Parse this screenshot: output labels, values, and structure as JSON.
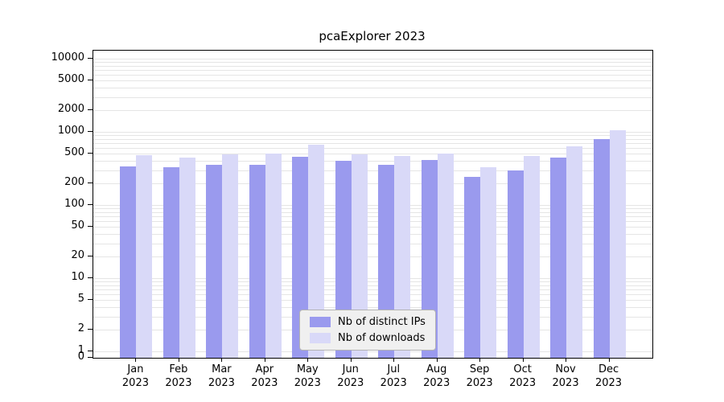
{
  "title": "pcaExplorer 2023",
  "y_axis": {
    "ticks": [
      10000,
      5000,
      2000,
      1000,
      500,
      200,
      100,
      50,
      20,
      10,
      5,
      2,
      1,
      0
    ],
    "tick_labels": [
      "10000",
      "5000",
      "2000",
      "1000",
      "500",
      "200",
      "100",
      "50",
      "20",
      "10",
      "5",
      "2",
      "1",
      "0"
    ],
    "scale": "log"
  },
  "legend": {
    "items": [
      "Nb of distinct IPs",
      "Nb of downloads"
    ],
    "position": "lower center"
  },
  "chart_data": {
    "type": "bar",
    "title": "pcaExplorer 2023",
    "categories": [
      "Jan 2023",
      "Feb 2023",
      "Mar 2023",
      "Apr 2023",
      "May 2023",
      "Jun 2023",
      "Jul 2023",
      "Aug 2023",
      "Sep 2023",
      "Oct 2023",
      "Nov 2023",
      "Dec 2023"
    ],
    "series": [
      {
        "name": "Nb of distinct IPs",
        "color": "#9a9aee",
        "values": [
          340,
          330,
          355,
          350,
          460,
          400,
          350,
          410,
          245,
          300,
          440,
          800
        ]
      },
      {
        "name": "Nb of downloads",
        "color": "#d9d9f8",
        "values": [
          480,
          450,
          495,
          500,
          670,
          490,
          465,
          510,
          330,
          470,
          640,
          1050
        ]
      }
    ],
    "yscale": "log",
    "ylim": [
      1,
      13000
    ],
    "grid": true,
    "legend_position": "lower center",
    "colors": {
      "bar_ips": "#9a9aee",
      "bar_downloads": "#d9d9f8",
      "grid": "#e5e5e5",
      "axis": "#000000",
      "legend_bg": "#f0f0f0",
      "legend_border": "#b3b3b3",
      "background": "#ffffff"
    }
  }
}
